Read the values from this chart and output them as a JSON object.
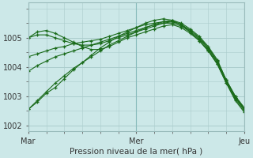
{
  "title": "Pression niveau de la mer( hPa )",
  "xlabel": "Pression niveau de la mer( hPa )",
  "x_ticks_labels": [
    "Mar",
    "Mer",
    "Jeu"
  ],
  "x_ticks_pos": [
    0,
    12,
    24
  ],
  "ylim": [
    1001.8,
    1006.2
  ],
  "yticks": [
    1002,
    1003,
    1004,
    1005
  ],
  "bg_color": "#cce8e8",
  "grid_color": "#aacccc",
  "line_color": "#1a6b1a",
  "n_points": 25,
  "series": [
    [
      1002.55,
      1002.8,
      1003.1,
      1003.3,
      1003.6,
      1003.9,
      1004.15,
      1004.4,
      1004.65,
      1004.85,
      1005.05,
      1005.2,
      1005.35,
      1005.5,
      1005.6,
      1005.65,
      1005.6,
      1005.45,
      1005.2,
      1004.9,
      1004.55,
      1004.1,
      1003.45,
      1002.85,
      1002.45
    ],
    [
      1003.85,
      1004.05,
      1004.2,
      1004.35,
      1004.45,
      1004.55,
      1004.65,
      1004.75,
      1004.85,
      1004.95,
      1005.05,
      1005.15,
      1005.25,
      1005.35,
      1005.45,
      1005.5,
      1005.5,
      1005.4,
      1005.2,
      1004.95,
      1004.6,
      1004.15,
      1003.5,
      1002.95,
      1002.55
    ],
    [
      1004.35,
      1004.45,
      1004.55,
      1004.65,
      1004.7,
      1004.8,
      1004.85,
      1004.9,
      1004.95,
      1005.05,
      1005.15,
      1005.25,
      1005.35,
      1005.45,
      1005.5,
      1005.55,
      1005.55,
      1005.45,
      1005.25,
      1005.0,
      1004.65,
      1004.2,
      1003.55,
      1003.0,
      1002.6
    ],
    [
      1005.0,
      1005.1,
      1005.1,
      1005.0,
      1004.9,
      1004.8,
      1004.75,
      1004.75,
      1004.8,
      1004.9,
      1005.0,
      1005.1,
      1005.2,
      1005.3,
      1005.4,
      1005.5,
      1005.55,
      1005.45,
      1005.25,
      1005.0,
      1004.65,
      1004.2,
      1003.55,
      1003.0,
      1002.6
    ],
    [
      1005.0,
      1005.2,
      1005.25,
      1005.15,
      1005.0,
      1004.85,
      1004.7,
      1004.6,
      1004.6,
      1004.7,
      1004.85,
      1005.0,
      1005.1,
      1005.2,
      1005.3,
      1005.4,
      1005.45,
      1005.35,
      1005.15,
      1004.9,
      1004.55,
      1004.1,
      1003.45,
      1002.9,
      1002.5
    ],
    [
      1002.55,
      1002.85,
      1003.15,
      1003.45,
      1003.7,
      1003.95,
      1004.15,
      1004.35,
      1004.55,
      1004.75,
      1004.9,
      1005.05,
      1005.2,
      1005.35,
      1005.45,
      1005.55,
      1005.6,
      1005.5,
      1005.3,
      1005.05,
      1004.7,
      1004.25,
      1003.55,
      1002.95,
      1002.55
    ]
  ]
}
